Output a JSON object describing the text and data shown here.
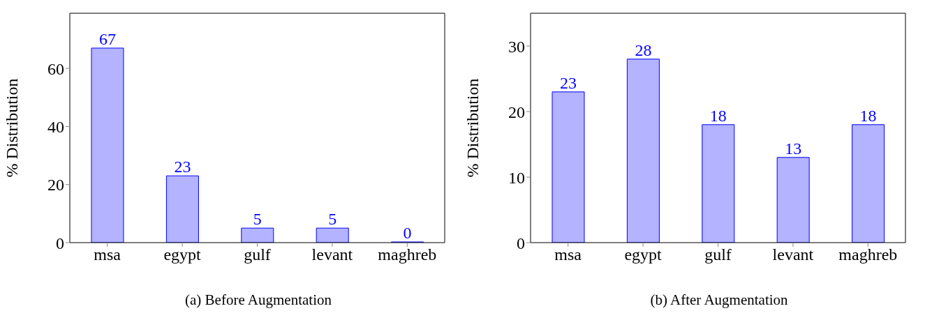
{
  "chart_data": [
    {
      "type": "bar",
      "title": "(a) Before Augmentation",
      "ylabel": "% Distribution",
      "categories": [
        "msa",
        "egypt",
        "gulf",
        "levant",
        "maghreb"
      ],
      "values": [
        67,
        23,
        5,
        5,
        0
      ],
      "color": "#b3b3ff",
      "ylim": [
        0,
        79
      ],
      "yticks": [
        0,
        20,
        40,
        60
      ],
      "data_labels": true,
      "grid": false
    },
    {
      "type": "bar",
      "title": "(b) After Augmentation",
      "ylabel": "% Distribution",
      "categories": [
        "msa",
        "egypt",
        "gulf",
        "levant",
        "maghreb"
      ],
      "values": [
        23,
        28,
        18,
        13,
        18
      ],
      "color": "#b3b3ff",
      "ylim": [
        0,
        35
      ],
      "yticks": [
        0,
        10,
        20,
        30
      ],
      "data_labels": true,
      "grid": false
    }
  ]
}
